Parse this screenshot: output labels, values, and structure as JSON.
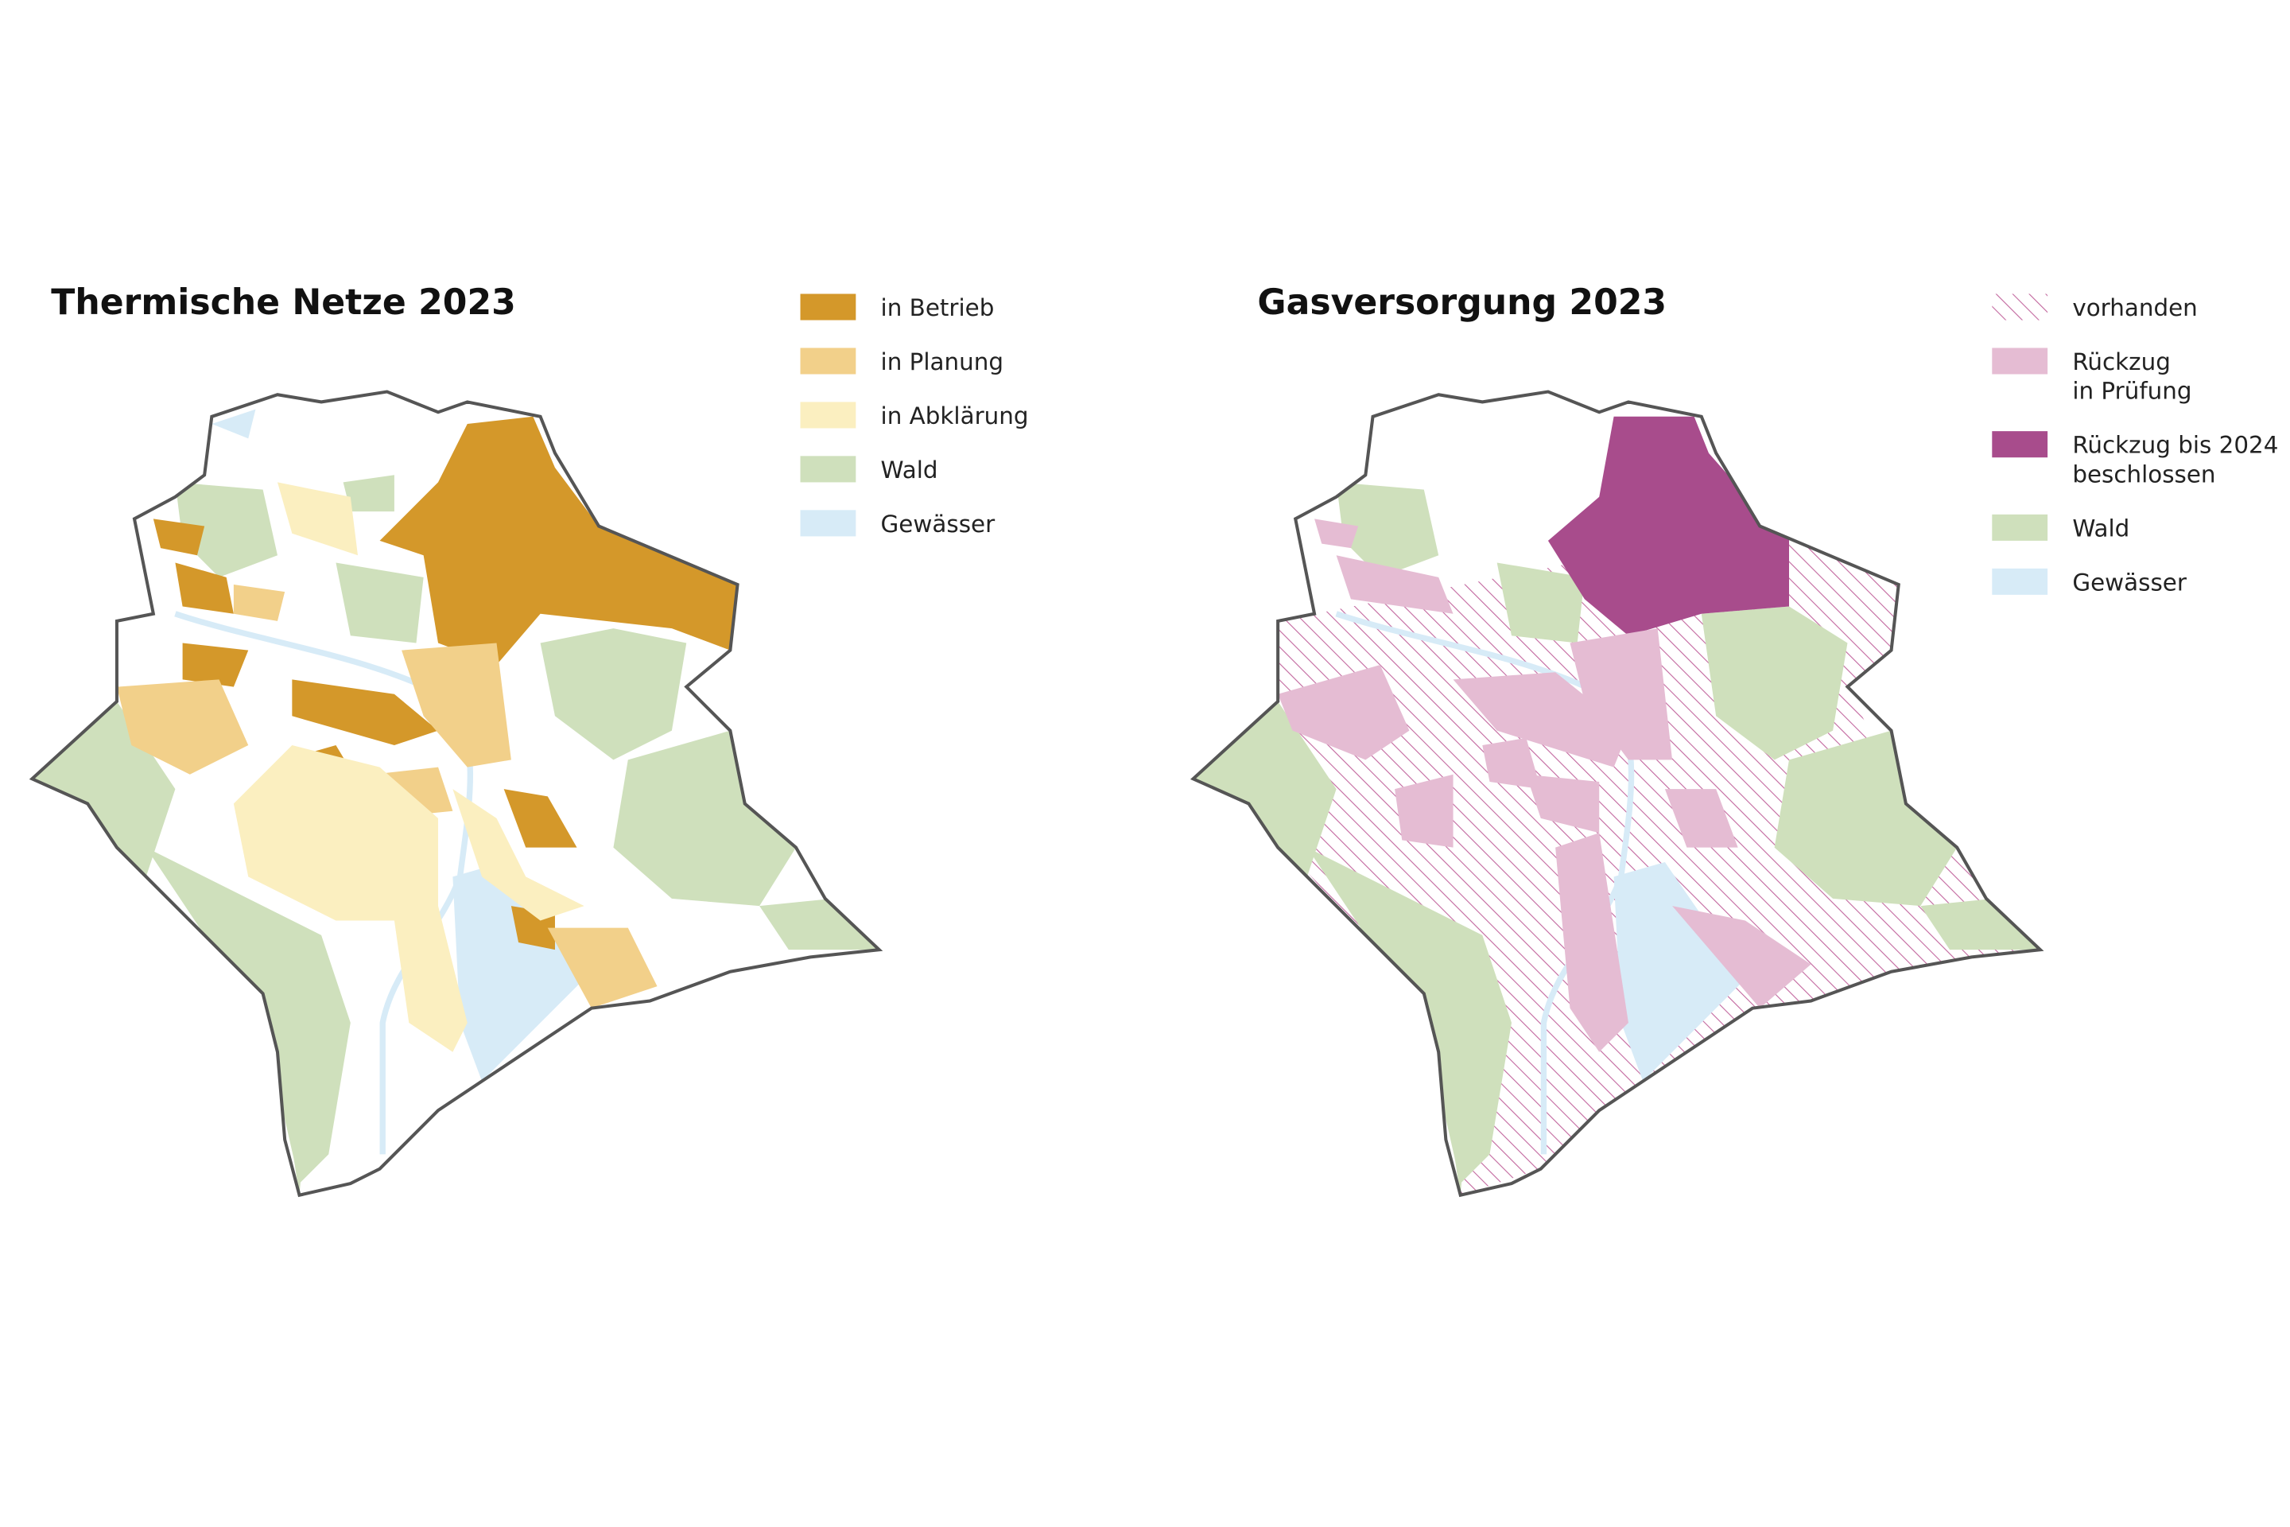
{
  "maps": [
    {
      "title": "Thermische Netze 2023",
      "legend": [
        {
          "lines": [
            "in Betrieb"
          ],
          "color": "#d4982a"
        },
        {
          "lines": [
            "in Planung"
          ],
          "color": "#f2d08a"
        },
        {
          "lines": [
            "in Abklärung"
          ],
          "color": "#fbefc0"
        },
        {
          "lines": [
            "Wald"
          ],
          "color": "#cfe0bc"
        },
        {
          "lines": [
            "Gewässer"
          ],
          "color": "#d7ebf7"
        }
      ]
    },
    {
      "title": "Gasversorgung 2023",
      "legend": [
        {
          "lines": [
            "vorhanden"
          ],
          "color": "#c2669e",
          "hatch": true
        },
        {
          "lines": [
            "Rückzug",
            "in Prüfung"
          ],
          "color": "#e5bcd3"
        },
        {
          "lines": [
            "Rückzug bis 2024",
            "beschlossen"
          ],
          "color": "#a84c8c"
        },
        {
          "lines": [
            "Wald"
          ],
          "color": "#cfe0bc"
        },
        {
          "lines": [
            "Gewässer"
          ],
          "color": "#d7ebf7"
        }
      ]
    }
  ]
}
